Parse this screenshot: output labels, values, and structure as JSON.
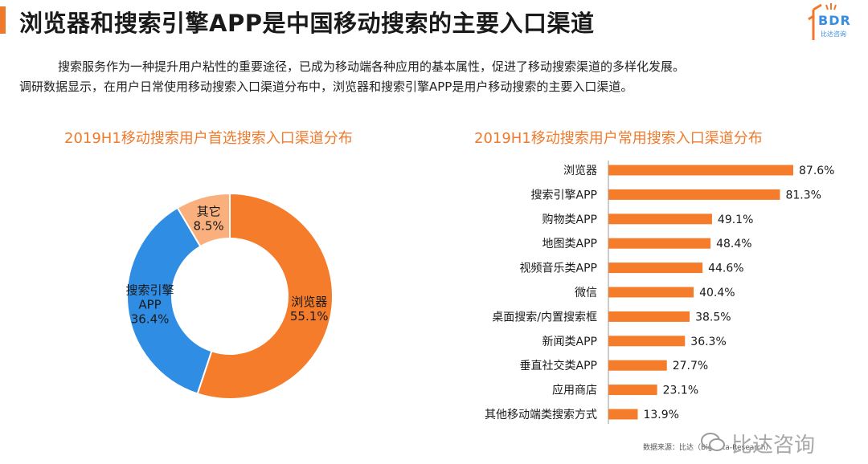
{
  "header": {
    "title": "浏览器和搜索引擎APP是中国移动搜索的主要入口渠道",
    "logo_text": "BDR",
    "logo_sub": "比达咨询"
  },
  "description": {
    "line1": "搜索服务作为一种提升用户粘性的重要途径，已成为移动端各种应用的基本属性，促进了移动搜索渠道的多样化发展。",
    "line2": "调研数据显示，在用户日常使用移动搜索入口渠道分布中，浏览器和搜索引擎APP是用户移动搜索的主要入口渠道。"
  },
  "colors": {
    "accent": "#f07a2c",
    "browser": "#f47c2a",
    "search_app": "#2f8de4",
    "other": "#f9b07d",
    "bar": "#f47c2a"
  },
  "chart_data": [
    {
      "type": "pie",
      "title": "2019H1移动搜索用户首选搜索入口渠道分布",
      "donut": true,
      "slices": [
        {
          "label": "浏览器",
          "value": 55.1,
          "value_label": "55.1%"
        },
        {
          "label": "搜索引擎APP",
          "value": 36.4,
          "value_label": "36.4%"
        },
        {
          "label": "其它",
          "value": 8.5,
          "value_label": "8.5%"
        }
      ]
    },
    {
      "type": "bar",
      "orientation": "horizontal",
      "title": "2019H1移动搜索用户常用搜索入口渠道分布",
      "categories": [
        "浏览器",
        "搜索引擎APP",
        "购物类APP",
        "地图类APP",
        "视频音乐类APP",
        "微信",
        "桌面搜索/内置搜索框",
        "新闻类APP",
        "垂直社交类APP",
        "应用商店",
        "其他移动端类搜索方式"
      ],
      "values": [
        87.6,
        81.3,
        49.1,
        48.4,
        44.6,
        40.4,
        38.5,
        36.3,
        27.7,
        23.1,
        13.9
      ],
      "value_labels": [
        "87.6%",
        "81.3%",
        "49.1%",
        "48.4%",
        "44.6%",
        "40.4%",
        "38.5%",
        "36.3%",
        "27.7%",
        "23.1%",
        "13.9%"
      ],
      "xlim": [
        0,
        100
      ]
    }
  ],
  "footer": {
    "source": "数据来源：比达（BigData-Research）",
    "watermark": "比达咨询"
  }
}
